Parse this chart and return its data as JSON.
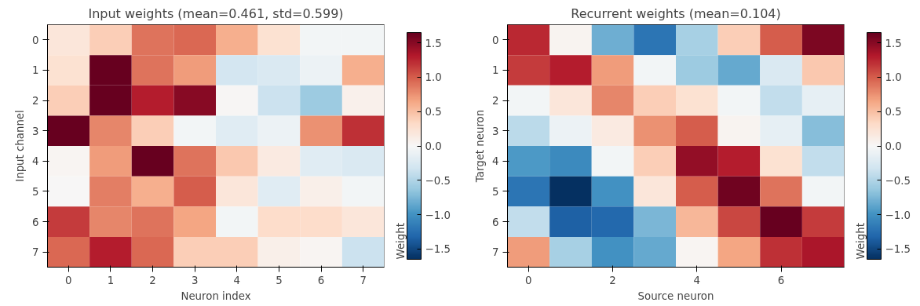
{
  "chart_data": [
    {
      "type": "heatmap",
      "title": "Input weights (mean=0.461, std=0.599)",
      "xlabel": "Neuron index",
      "ylabel": "Input channel",
      "clabel": "Weight",
      "categories": [
        "0",
        "1",
        "2",
        "3",
        "4",
        "5",
        "6",
        "7"
      ],
      "y_categories": [
        "0",
        "1",
        "2",
        "3",
        "4",
        "5",
        "6",
        "7"
      ],
      "cells": [
        [
          0.2,
          0.4,
          0.9,
          0.95,
          0.6,
          0.25,
          -0.05,
          -0.05
        ],
        [
          0.25,
          1.65,
          0.9,
          0.7,
          -0.3,
          -0.25,
          -0.1,
          0.6
        ],
        [
          0.4,
          1.65,
          1.3,
          1.5,
          0.02,
          -0.35,
          -0.6,
          0.08
        ],
        [
          1.65,
          0.8,
          0.4,
          -0.05,
          -0.2,
          -0.1,
          0.75,
          1.2
        ],
        [
          0.03,
          0.7,
          1.65,
          0.9,
          0.45,
          0.15,
          -0.2,
          -0.25
        ],
        [
          0.0,
          0.85,
          0.6,
          1.0,
          0.2,
          -0.2,
          0.1,
          -0.05
        ],
        [
          1.15,
          0.8,
          0.9,
          0.65,
          -0.05,
          0.3,
          0.3,
          0.2
        ],
        [
          0.95,
          1.3,
          0.95,
          0.4,
          0.4,
          0.1,
          0.03,
          -0.35
        ]
      ],
      "clim": [
        -1.65,
        1.65
      ],
      "cticks": [
        -1.5,
        {
          "value": -1,
          "label": "−1.0"
        },
        -0.5,
        {
          "value": 0,
          "label": "0.0"
        },
        0.5,
        {
          "value": 1,
          "label": "1.0"
        },
        1.5
      ]
    },
    {
      "type": "heatmap",
      "title": "Recurrent weights (mean=0.104)",
      "xlabel": "Source neuron",
      "ylabel": "Target neuron",
      "clabel": "Weight",
      "categories": [
        "0",
        null,
        "2",
        null,
        "4",
        null,
        "6",
        null
      ],
      "y_categories": [
        "0",
        "1",
        "2",
        "3",
        "4",
        "5",
        "6",
        "7"
      ],
      "cells": [
        [
          1.25,
          0.05,
          -0.8,
          -1.2,
          -0.55,
          0.4,
          1.0,
          1.55
        ],
        [
          1.15,
          1.3,
          0.7,
          -0.05,
          -0.6,
          -0.85,
          -0.25,
          0.45
        ],
        [
          -0.05,
          0.2,
          0.8,
          0.4,
          0.25,
          -0.05,
          -0.4,
          -0.15
        ],
        [
          -0.45,
          -0.1,
          0.15,
          0.75,
          1.0,
          0.05,
          -0.15,
          -0.7
        ],
        [
          -0.95,
          -1.05,
          -0.05,
          0.4,
          1.45,
          1.3,
          0.25,
          -0.4
        ],
        [
          -1.2,
          -1.65,
          -1.0,
          0.2,
          1.0,
          1.6,
          0.9,
          -0.05
        ],
        [
          -0.4,
          -1.35,
          -1.3,
          -0.75,
          0.55,
          1.1,
          1.65,
          1.15
        ],
        [
          0.7,
          -0.55,
          -1.0,
          -0.85,
          0.03,
          0.65,
          1.2,
          1.35
        ]
      ],
      "clim": [
        -1.65,
        1.65
      ],
      "cticks": [
        -1.5,
        {
          "value": -1,
          "label": "−1.0"
        },
        -0.5,
        {
          "value": 0,
          "label": "0.0"
        },
        0.5,
        {
          "value": 1,
          "label": "1.0"
        },
        1.5
      ]
    }
  ]
}
